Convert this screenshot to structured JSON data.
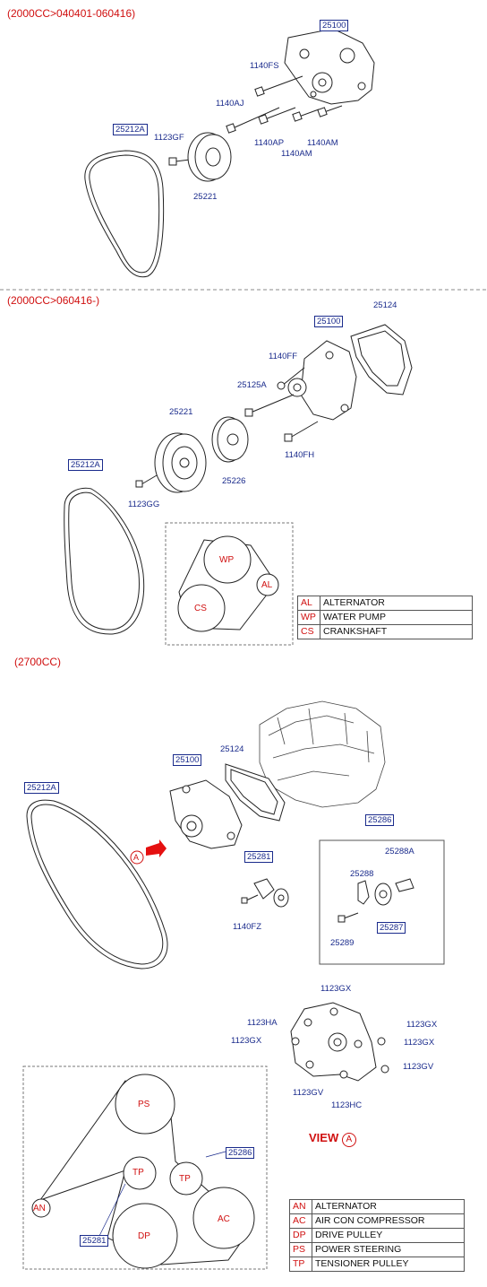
{
  "sections": {
    "s1": "(2000CC>040401-060416)",
    "s2": "(2000CC>060416-)",
    "s3": "(2700CC)"
  },
  "s1_parts": {
    "p25100": "25100",
    "p1140FS": "1140FS",
    "p1140AJ": "1140AJ",
    "p25212A": "25212A",
    "p1123GF": "1123GF",
    "p1140AP": "1140AP",
    "p1140AM_a": "1140AM",
    "p1140AM_b": "1140AM",
    "p25221": "25221"
  },
  "s2_parts": {
    "p25100": "25100",
    "p25124": "25124",
    "p1140FF": "1140FF",
    "p25125A": "25125A",
    "p25221": "25221",
    "p25212A": "25212A",
    "p25226": "25226",
    "p1140FH": "1140FH",
    "p1123GG": "1123GG"
  },
  "s2_layout": {
    "wp": "WP",
    "cs": "CS",
    "al": "AL",
    "legend": [
      {
        "code": "AL",
        "name": "ALTERNATOR"
      },
      {
        "code": "WP",
        "name": "WATER PUMP"
      },
      {
        "code": "CS",
        "name": "CRANKSHAFT"
      }
    ]
  },
  "s3_parts": {
    "p25124": "25124",
    "p25100": "25100",
    "p25212A": "25212A",
    "p25286": "25286",
    "p25288A": "25288A",
    "p25281": "25281",
    "p25288": "25288",
    "p1140FZ": "1140FZ",
    "p25287": "25287",
    "p25289": "25289",
    "arrowA": "A"
  },
  "s3_view": {
    "p1123GX_top": "1123GX",
    "p1123HA": "1123HA",
    "p1123GX_r1": "1123GX",
    "p1123GX_l": "1123GX",
    "p1123GX_r2": "1123GX",
    "p1123GV_r": "1123GV",
    "p1123GV_b": "1123GV",
    "p1123HC": "1123HC",
    "view_label": "VIEW",
    "view_letter": "A"
  },
  "s3_layout": {
    "ps": "PS",
    "tp1": "TP",
    "tp2": "TP",
    "an": "AN",
    "ac": "AC",
    "dp": "DP",
    "p25286": "25286",
    "p25281": "25281",
    "legend": [
      {
        "code": "AN",
        "name": "ALTERNATOR"
      },
      {
        "code": "AC",
        "name": "AIR CON COMPRESSOR"
      },
      {
        "code": "DP",
        "name": "DRIVE PULLEY"
      },
      {
        "code": "PS",
        "name": "POWER STEERING"
      },
      {
        "code": "TP",
        "name": "TENSIONER PULLEY"
      }
    ]
  },
  "colors": {
    "label": "#1a2b8c",
    "accent": "#d01010"
  }
}
